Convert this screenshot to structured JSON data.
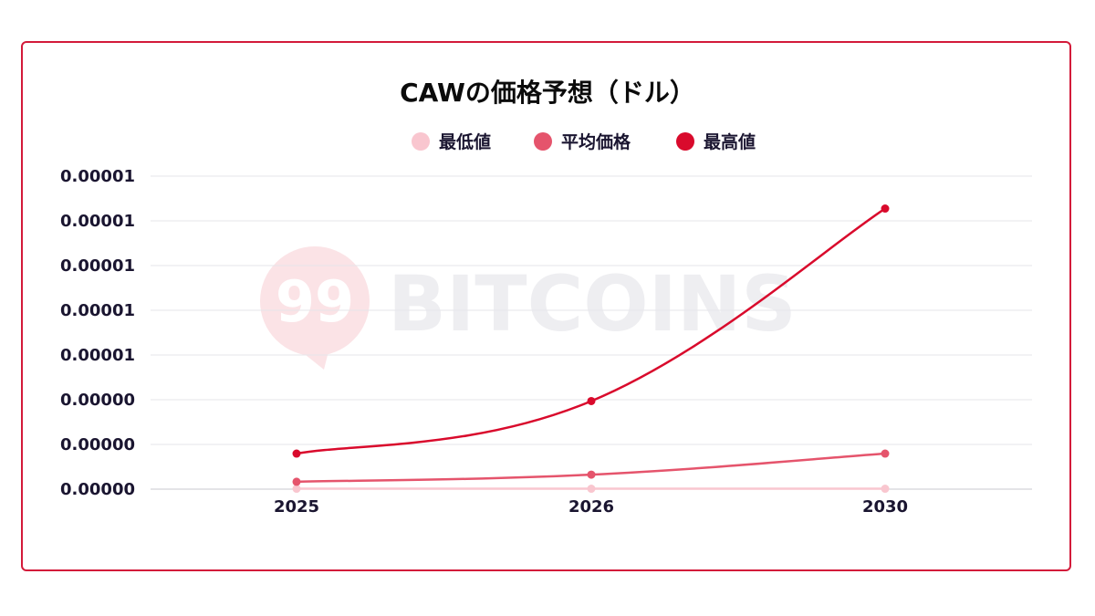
{
  "chart_data": {
    "type": "line",
    "title": "CAWの価格予想（ドル）",
    "categories": [
      "2025",
      "2026",
      "2030"
    ],
    "y_tick_labels": [
      "0.00001",
      "0.00001",
      "0.00001",
      "0.00001",
      "0.00001",
      "0.00000",
      "0.00000",
      "0.00000"
    ],
    "ylim": [
      0,
      1.4e-05
    ],
    "grid": true,
    "legend_position": "top",
    "series": [
      {
        "name": "最低値",
        "color": "#f9c6cf",
        "values": [
          2e-08,
          2e-08,
          2e-08
        ]
      },
      {
        "name": "平均価格",
        "color": "#e5546c",
        "values": [
          3.3e-07,
          6.5e-07,
          1.59e-06
        ]
      },
      {
        "name": "最高値",
        "color": "#d90a2c",
        "values": [
          1.59e-06,
          3.94e-06,
          1.255e-05
        ]
      }
    ]
  },
  "watermark": {
    "text": "BITCOINS",
    "logo_text": "99"
  }
}
